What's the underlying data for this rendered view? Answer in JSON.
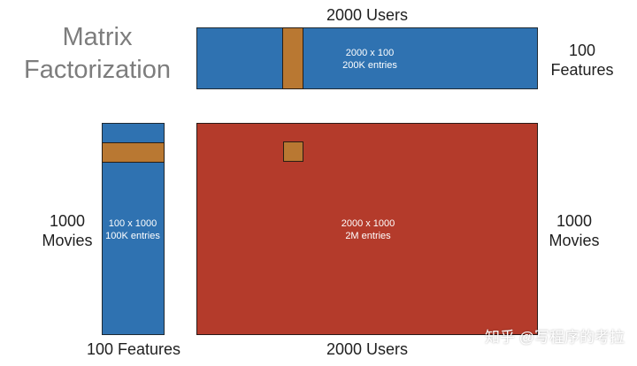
{
  "title": {
    "line1": "Matrix",
    "line2": "Factorization"
  },
  "user_matrix": {
    "top_label": "2000 Users",
    "right_label_line1": "100",
    "right_label_line2": "Features",
    "inner_line1": "2000 x 100",
    "inner_line2": "200K entries"
  },
  "movie_matrix": {
    "left_label_line1": "1000",
    "left_label_line2": "Movies",
    "bottom_label": "100 Features",
    "inner_line1": "100 x 1000",
    "inner_line2": "100K entries"
  },
  "ratings_matrix": {
    "right_label_line1": "1000",
    "right_label_line2": "Movies",
    "bottom_label": "2000 Users",
    "inner_line1": "2000 x 1000",
    "inner_line2": "2M entries"
  },
  "watermark": "知乎 @写程序的考拉",
  "colors": {
    "blue_matrix": "#2f72b1",
    "red_matrix": "#b43b2b",
    "highlight": "#b97832"
  }
}
